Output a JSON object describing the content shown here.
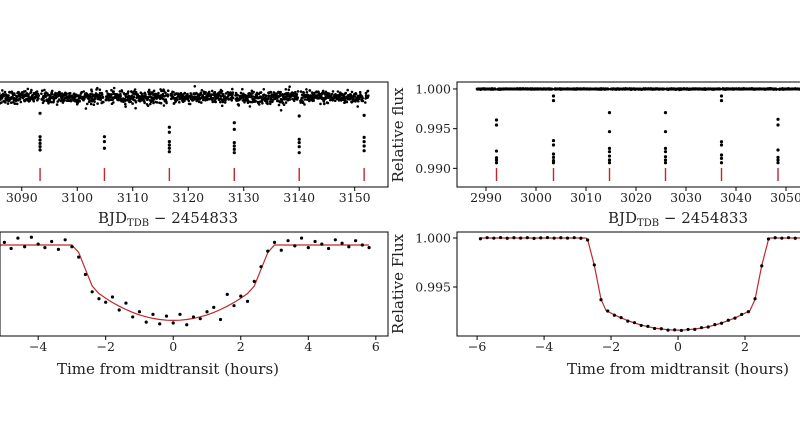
{
  "colors": {
    "points": "#000000",
    "model": "#c0282d",
    "markers": "#c0282d",
    "axes": "#000000"
  },
  "chart_data": [
    {
      "type": "scatter",
      "panel": "top-left",
      "xlim": [
        3085.9,
        3156.0
      ],
      "ylim": [
        0.9863,
        1.0023
      ],
      "xticks": [
        "3090",
        "3100",
        "3110",
        "3120",
        "3130",
        "3140",
        "3150"
      ],
      "yticks": [],
      "xlabel": {
        "main": "BJD",
        "sub": "TDB",
        "rest": " − 2454833"
      },
      "ylabel": "",
      "out_of_transit": {
        "x_range": [
          3084.0,
          3152.5
        ],
        "flux": 1.0,
        "scatter": 0.0005
      },
      "transit_markers": [
        3093.3,
        3104.9,
        3116.6,
        3128.3,
        3140.0,
        3151.7
      ],
      "in_transit_points": [
        [
          3093.3,
          0.99753
        ],
        [
          3093.3,
          0.99397
        ],
        [
          3093.3,
          0.99346
        ],
        [
          3093.3,
          0.99295
        ],
        [
          3093.3,
          0.99245
        ],
        [
          3093.3,
          0.99194
        ],
        [
          3104.9,
          0.99397
        ],
        [
          3104.9,
          0.99321
        ],
        [
          3104.9,
          0.9922
        ],
        [
          3116.6,
          0.9954
        ],
        [
          3116.6,
          0.99464
        ],
        [
          3116.6,
          0.99321
        ],
        [
          3116.6,
          0.9927
        ],
        [
          3116.6,
          0.9922
        ],
        [
          3116.6,
          0.99168
        ],
        [
          3128.3,
          0.9961
        ],
        [
          3128.3,
          0.99509
        ],
        [
          3128.3,
          0.99306
        ],
        [
          3128.3,
          0.99255
        ],
        [
          3128.3,
          0.99204
        ],
        [
          3128.3,
          0.99153
        ],
        [
          3140.0,
          0.99712
        ],
        [
          3140.0,
          0.99357
        ],
        [
          3140.0,
          0.99306
        ],
        [
          3140.0,
          0.99244
        ],
        [
          3140.0,
          0.99153
        ],
        [
          3151.7,
          0.99722
        ],
        [
          3151.7,
          0.99387
        ],
        [
          3151.7,
          0.99321
        ],
        [
          3151.7,
          0.99255
        ],
        [
          3151.7,
          0.99183
        ]
      ]
    },
    {
      "type": "scatter",
      "panel": "top-right",
      "xlim": [
        2984.2,
        3055.2
      ],
      "ylim": [
        0.98765,
        1.00088
      ],
      "xticks": [
        "2990",
        "3000",
        "3010",
        "3020",
        "3030",
        "3040",
        "3050"
      ],
      "yticks": [
        "1.000",
        "0.995",
        "0.990"
      ],
      "xlabel": {
        "main": "BJD",
        "sub": "TDB",
        "rest": " − 2454833"
      },
      "ylabel": "Relative flux",
      "out_of_transit": {
        "x_range": [
          2988.2,
          3056.0
        ],
        "flux": 1.0,
        "scatter": 3e-05
      },
      "transit_markers": [
        2992.1,
        3003.5,
        3014.7,
        3025.9,
        3037.1,
        3048.4
      ],
      "in_transit_points": [
        [
          2992.1,
          0.99609
        ],
        [
          2992.1,
          0.99546
        ],
        [
          2992.1,
          0.99218
        ],
        [
          2992.1,
          0.99134
        ],
        [
          2992.1,
          0.99105
        ],
        [
          2992.1,
          0.99071
        ],
        [
          3003.5,
          0.99912
        ],
        [
          3003.5,
          0.99853
        ],
        [
          3003.5,
          0.99349
        ],
        [
          3003.5,
          0.99294
        ],
        [
          3003.5,
          0.99181
        ],
        [
          3003.5,
          0.99139
        ],
        [
          3003.5,
          0.99097
        ],
        [
          3003.5,
          0.99071
        ],
        [
          3014.7,
          0.99702
        ],
        [
          3014.7,
          0.99462
        ],
        [
          3014.7,
          0.99252
        ],
        [
          3014.7,
          0.9921
        ],
        [
          3014.7,
          0.99155
        ],
        [
          3014.7,
          0.99105
        ],
        [
          3014.7,
          0.99071
        ],
        [
          3025.9,
          0.99702
        ],
        [
          3025.9,
          0.99462
        ],
        [
          3025.9,
          0.99252
        ],
        [
          3025.9,
          0.9921
        ],
        [
          3025.9,
          0.99147
        ],
        [
          3025.9,
          0.99105
        ],
        [
          3025.9,
          0.99071
        ],
        [
          3037.1,
          0.99912
        ],
        [
          3037.1,
          0.99853
        ],
        [
          3037.1,
          0.99336
        ],
        [
          3037.1,
          0.99294
        ],
        [
          3037.1,
          0.99168
        ],
        [
          3037.1,
          0.99126
        ],
        [
          3037.1,
          0.99071
        ],
        [
          3048.4,
          0.99618
        ],
        [
          3048.4,
          0.99546
        ],
        [
          3048.4,
          0.99231
        ],
        [
          3048.4,
          0.99139
        ],
        [
          3048.4,
          0.99105
        ],
        [
          3048.4,
          0.99071
        ]
      ]
    },
    {
      "type": "scatter",
      "panel": "bottom-left",
      "xlim": [
        -5.13,
        6.36
      ],
      "ylim": [
        0.9895,
        1.0015
      ],
      "xticks": [
        "−4",
        "−2",
        "0",
        "2",
        "4",
        "6"
      ],
      "yticks": [],
      "xlabel": {
        "main": "Time from midtransit (hours)",
        "sub": "",
        "rest": ""
      },
      "ylabel": "",
      "points": {
        "x": [
          -5.0,
          -4.8,
          -4.6,
          -4.4,
          -4.2,
          -4.0,
          -3.8,
          -3.6,
          -3.4,
          -3.2,
          -3.0,
          -2.8,
          -2.6,
          -2.4,
          -2.2,
          -2.0,
          -1.8,
          -1.6,
          -1.4,
          -1.2,
          -1.0,
          -0.8,
          -0.6,
          -0.4,
          -0.2,
          0.0,
          0.2,
          0.4,
          0.6,
          0.8,
          1.0,
          1.2,
          1.4,
          1.6,
          1.8,
          2.0,
          2.2,
          2.4,
          2.6,
          2.8,
          3.0,
          3.2,
          3.4,
          3.6,
          3.8,
          4.0,
          4.2,
          4.4,
          4.6,
          4.8,
          5.0,
          5.2,
          5.4,
          5.6,
          5.8
        ],
        "y": [
          1.0003,
          0.9996,
          1.0008,
          0.9998,
          1.0009,
          1.0001,
          0.9997,
          1.0004,
          0.9995,
          1.0006,
          0.9998,
          0.9986,
          0.9966,
          0.9946,
          0.9938,
          0.9934,
          0.994,
          0.9925,
          0.9933,
          0.9917,
          0.9923,
          0.9911,
          0.992,
          0.9909,
          0.9918,
          0.991,
          0.992,
          0.9908,
          0.9917,
          0.9915,
          0.9923,
          0.9928,
          0.9914,
          0.9943,
          0.993,
          0.9941,
          0.9935,
          0.9958,
          0.9975,
          0.9993,
          1.0003,
          0.9994,
          1.0005,
          0.9999,
          1.0008,
          0.9997,
          1.0004,
          1.0001,
          0.9996,
          1.0006,
          1.0002,
          0.9998,
          1.0005,
          1.0,
          0.9997
        ]
      },
      "model": {
        "x": [
          -5.13,
          -3.0,
          -2.8,
          -2.6,
          -2.4,
          -2.2,
          -2.0,
          -1.8,
          -1.6,
          -1.4,
          -1.2,
          -1.0,
          -0.8,
          -0.6,
          -0.4,
          -0.2,
          0.0,
          0.2,
          0.4,
          0.6,
          0.8,
          1.0,
          1.2,
          1.4,
          1.6,
          1.8,
          2.0,
          2.2,
          2.4,
          2.6,
          2.8,
          3.0,
          5.8
        ],
        "y": [
          1.0,
          1.0,
          0.99913,
          0.9972,
          0.99527,
          0.9944,
          0.99386,
          0.99337,
          0.99294,
          0.99256,
          0.99222,
          0.99194,
          0.99171,
          0.99153,
          0.9914,
          0.99132,
          0.9913,
          0.99132,
          0.9914,
          0.99153,
          0.99171,
          0.99194,
          0.99222,
          0.99256,
          0.99294,
          0.99337,
          0.99386,
          0.9944,
          0.99527,
          0.9972,
          0.99913,
          1.0,
          1.0
        ]
      }
    },
    {
      "type": "scatter",
      "panel": "bottom-right",
      "xlim": [
        -6.6,
        4.0
      ],
      "ylim": [
        0.99,
        1.00061
      ],
      "xticks": [
        "−6",
        "−4",
        "−2",
        "0",
        "2"
      ],
      "yticks": [
        "1.000",
        "0.995"
      ],
      "xlabel": {
        "main": "Time from midtransit (hours)",
        "sub": "",
        "rest": ""
      },
      "ylabel": "Relative Flux",
      "points": {
        "x": [
          -5.9,
          -5.7,
          -5.5,
          -5.3,
          -5.1,
          -4.9,
          -4.7,
          -4.5,
          -4.3,
          -4.1,
          -3.9,
          -3.7,
          -3.5,
          -3.3,
          -3.1,
          -2.9,
          -2.7,
          -2.5,
          -2.3,
          -2.1,
          -1.9,
          -1.7,
          -1.5,
          -1.3,
          -1.1,
          -0.9,
          -0.7,
          -0.5,
          -0.3,
          -0.1,
          0.1,
          0.3,
          0.5,
          0.7,
          0.9,
          1.1,
          1.3,
          1.5,
          1.7,
          1.9,
          2.1,
          2.3,
          2.5,
          2.7,
          2.9,
          3.1,
          3.3,
          3.5,
          3.7
        ],
        "y": [
          0.99992,
          1.00003,
          0.99998,
          1.00004,
          0.99997,
          1.00002,
          0.99999,
          1.00003,
          0.99996,
          1.00001,
          1.00004,
          0.99998,
          1.00002,
          0.99999,
          1.00003,
          0.99997,
          0.9998,
          0.99725,
          0.9937,
          0.99255,
          0.99212,
          0.99188,
          0.99152,
          0.99136,
          0.99108,
          0.99098,
          0.99077,
          0.99074,
          0.9906,
          0.99063,
          0.99057,
          0.99067,
          0.99068,
          0.99085,
          0.99092,
          0.99116,
          0.9913,
          0.99161,
          0.99182,
          0.9922,
          0.99248,
          0.9938,
          0.99716,
          0.9999,
          1.00002,
          0.99998,
          1.00003,
          0.99997,
          1.00001
        ]
      },
      "model": {
        "x": [
          -5.9,
          -2.75,
          -2.7,
          -2.5,
          -2.3,
          -2.15,
          -2.1,
          -1.9,
          -1.7,
          -1.5,
          -1.3,
          -1.1,
          -0.9,
          -0.7,
          -0.5,
          -0.3,
          -0.1,
          0.1,
          0.3,
          0.5,
          0.7,
          0.9,
          1.1,
          1.3,
          1.5,
          1.7,
          1.9,
          2.1,
          2.15,
          2.3,
          2.5,
          2.7,
          2.75,
          4.0
        ],
        "y": [
          1.0,
          1.0,
          0.99986,
          0.99721,
          0.99375,
          0.9926,
          0.99251,
          0.99216,
          0.99185,
          0.99157,
          0.99133,
          0.99112,
          0.99095,
          0.99081,
          0.99071,
          0.99064,
          0.9906,
          0.9906,
          0.99064,
          0.99071,
          0.99081,
          0.99095,
          0.99112,
          0.99133,
          0.99157,
          0.99185,
          0.99216,
          0.99251,
          0.9926,
          0.99375,
          0.99721,
          0.99986,
          1.0,
          1.0
        ]
      }
    }
  ]
}
